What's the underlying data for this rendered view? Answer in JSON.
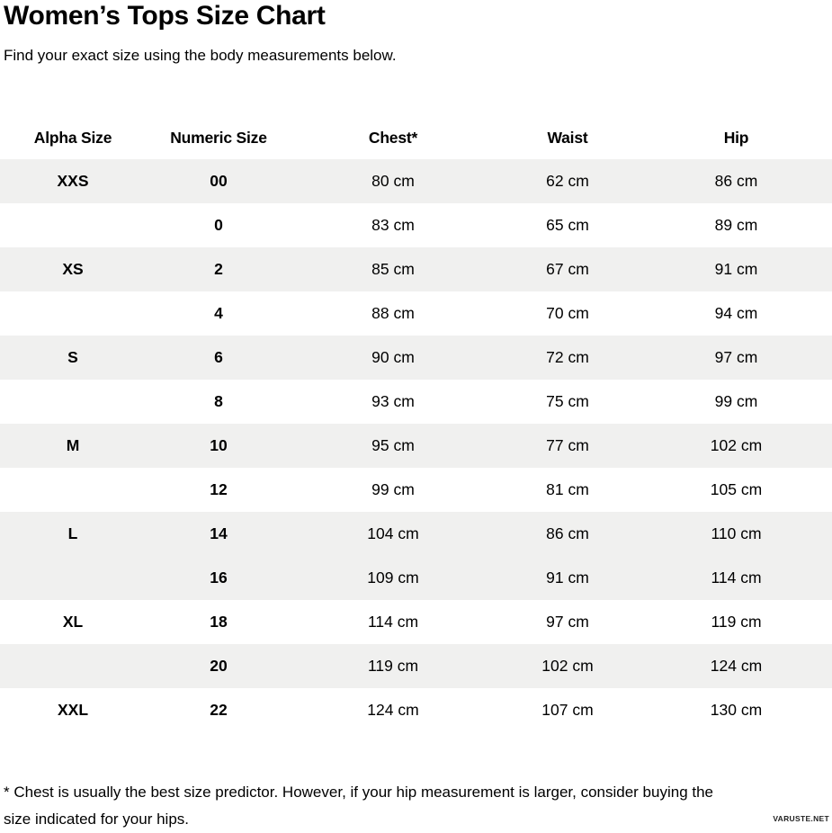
{
  "page": {
    "title": "Women’s Tops Size Chart",
    "subtitle": "Find your exact size using the body measurements below.",
    "watermark": "VARUSTE.NET"
  },
  "colors": {
    "row_shade": "#f0f0ef",
    "text": "#000000"
  },
  "table": {
    "columns": [
      "Alpha Size",
      "Numeric Size",
      "Chest*",
      "Waist",
      "Hip"
    ],
    "rows": [
      {
        "alpha": "XXS",
        "numeric": "00",
        "chest": "80 cm",
        "waist": "62 cm",
        "hip": "86 cm",
        "shaded": true
      },
      {
        "alpha": "",
        "numeric": "0",
        "chest": "83 cm",
        "waist": "65 cm",
        "hip": "89 cm",
        "shaded": false
      },
      {
        "alpha": "XS",
        "numeric": "2",
        "chest": "85 cm",
        "waist": "67 cm",
        "hip": "91 cm",
        "shaded": true
      },
      {
        "alpha": "",
        "numeric": "4",
        "chest": "88 cm",
        "waist": "70 cm",
        "hip": "94 cm",
        "shaded": false
      },
      {
        "alpha": "S",
        "numeric": "6",
        "chest": "90 cm",
        "waist": "72 cm",
        "hip": "97 cm",
        "shaded": true
      },
      {
        "alpha": "",
        "numeric": "8",
        "chest": "93 cm",
        "waist": "75 cm",
        "hip": "99 cm",
        "shaded": false
      },
      {
        "alpha": "M",
        "numeric": "10",
        "chest": "95 cm",
        "waist": "77 cm",
        "hip": "102 cm",
        "shaded": true
      },
      {
        "alpha": "",
        "numeric": "12",
        "chest": "99 cm",
        "waist": "81 cm",
        "hip": "105 cm",
        "shaded": false
      },
      {
        "alpha": "L",
        "numeric": "14",
        "chest": "104 cm",
        "waist": "86 cm",
        "hip": "110 cm",
        "shaded": true
      },
      {
        "alpha": "",
        "numeric": "16",
        "chest": "109 cm",
        "waist": "91 cm",
        "hip": "114 cm",
        "shaded": true
      },
      {
        "alpha": "XL",
        "numeric": "18",
        "chest": "114 cm",
        "waist": "97 cm",
        "hip": "119 cm",
        "shaded": false
      },
      {
        "alpha": "",
        "numeric": "20",
        "chest": "119 cm",
        "waist": "102 cm",
        "hip": "124 cm",
        "shaded": true
      },
      {
        "alpha": "XXL",
        "numeric": "22",
        "chest": "124 cm",
        "waist": "107 cm",
        "hip": "130 cm",
        "shaded": false
      }
    ]
  },
  "footnote": {
    "lines": [
      "* Chest is usually the best size predictor. However, if your hip measurement is larger, consider buying the",
      "size indicated for your hips."
    ]
  },
  "chart_data": {
    "type": "table",
    "title": "Women’s Tops Size Chart",
    "subtitle": "Find your exact size using the body measurements below.",
    "columns": [
      "Alpha Size",
      "Numeric Size",
      "Chest*",
      "Waist",
      "Hip"
    ],
    "units": "cm",
    "rows": [
      [
        "XXS",
        "00",
        "80 cm",
        "62 cm",
        "86 cm"
      ],
      [
        "",
        "0",
        "83 cm",
        "65 cm",
        "89 cm"
      ],
      [
        "XS",
        "2",
        "85 cm",
        "67 cm",
        "91 cm"
      ],
      [
        "",
        "4",
        "88 cm",
        "70 cm",
        "94 cm"
      ],
      [
        "S",
        "6",
        "90 cm",
        "72 cm",
        "97 cm"
      ],
      [
        "",
        "8",
        "93 cm",
        "75 cm",
        "99 cm"
      ],
      [
        "M",
        "10",
        "95 cm",
        "77 cm",
        "102 cm"
      ],
      [
        "",
        "12",
        "99 cm",
        "81 cm",
        "105 cm"
      ],
      [
        "L",
        "14",
        "104 cm",
        "86 cm",
        "110 cm"
      ],
      [
        "",
        "16",
        "109 cm",
        "91 cm",
        "114 cm"
      ],
      [
        "XL",
        "18",
        "114 cm",
        "97 cm",
        "119 cm"
      ],
      [
        "",
        "20",
        "119 cm",
        "102 cm",
        "124 cm"
      ],
      [
        "XXL",
        "22",
        "124 cm",
        "107 cm",
        "130 cm"
      ]
    ],
    "footnote": "* Chest is usually the best size predictor. However, if your hip measurement is larger, consider buying the size indicated for your hips."
  }
}
